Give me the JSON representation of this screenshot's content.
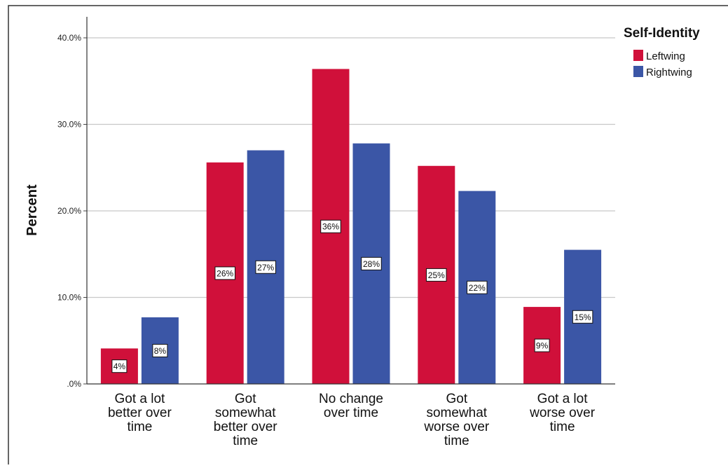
{
  "chart_data": {
    "type": "bar",
    "title": "",
    "xlabel": "",
    "ylabel": "Percent",
    "ylim": [
      0,
      40
    ],
    "yticks": [
      0,
      10,
      20,
      30,
      40
    ],
    "ytick_labels": [
      ".0%",
      "10.0%",
      "20.0%",
      "30.0%",
      "40.0%"
    ],
    "grid": "horizontal",
    "legend": {
      "title": "Self-Identity",
      "placement": "top-right"
    },
    "categories": [
      [
        "Got a lot",
        "better over",
        "time"
      ],
      [
        "Got",
        "somewhat",
        "better over",
        "time"
      ],
      [
        "No change",
        "over time"
      ],
      [
        "Got",
        "somewhat",
        "worse over",
        "time"
      ],
      [
        "Got a lot",
        "worse over",
        "time"
      ]
    ],
    "series": [
      {
        "name": "Leftwing",
        "color": "#d0103a",
        "values": [
          4.1,
          25.6,
          36.4,
          25.2,
          8.9
        ],
        "labels": [
          "4%",
          "26%",
          "36%",
          "25%",
          "9%"
        ]
      },
      {
        "name": "Rightwing",
        "color": "#3b56a6",
        "values": [
          7.7,
          27.0,
          27.8,
          22.3,
          15.5
        ],
        "labels": [
          "8%",
          "27%",
          "28%",
          "22%",
          "15%"
        ]
      }
    ]
  }
}
